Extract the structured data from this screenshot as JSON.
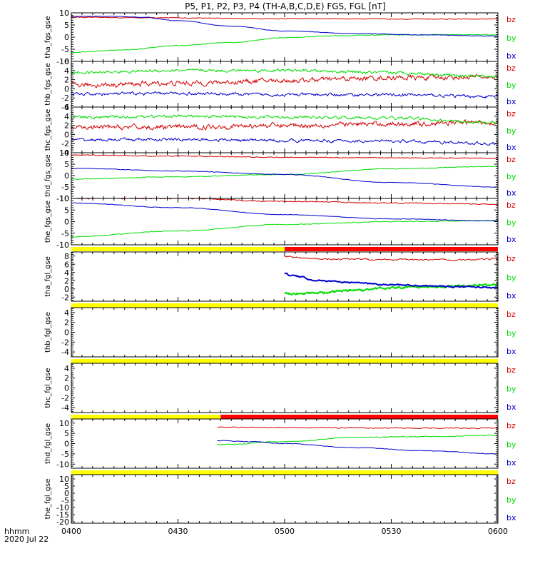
{
  "title": "P5, P1, P2, P3, P4 (TH-A,B,C,D,E) FGS, FGL [nT]",
  "footer": {
    "hhmm": "hhmm",
    "date": "2020 Jul 22"
  },
  "colors": {
    "bz": "#d40000",
    "by": "#00dd00",
    "bx": "#0000cc",
    "bar_yellow": "#ffff00",
    "bar_red": "#ff0000"
  },
  "chart_data": [
    {
      "type": "line",
      "ylabel": "tha_fgs_gse",
      "ylim": [
        -10,
        10
      ],
      "ticks": [
        -10,
        -5,
        0,
        5,
        10
      ],
      "tick_labels": [
        "-10",
        "-5",
        "0",
        "5",
        "10"
      ],
      "series": [
        {
          "name": "bz",
          "x": [
            0,
            20,
            60,
            120
          ],
          "y": [
            8.2,
            8.0,
            7.6,
            7.4
          ],
          "noise": 0.15
        },
        {
          "name": "by",
          "x": [
            0,
            15,
            30,
            45,
            60,
            75,
            90,
            105,
            120
          ],
          "y": [
            -6.3,
            -5.2,
            -3.5,
            -2.2,
            -0.2,
            0.6,
            0.9,
            1.0,
            0.9
          ],
          "noise": 0.15
        },
        {
          "name": "bx",
          "x": [
            0,
            10,
            20,
            30,
            45,
            60,
            80,
            100,
            120
          ],
          "y": [
            8.5,
            8.6,
            8.2,
            6.8,
            4.5,
            2.5,
            1.5,
            0.9,
            0.4
          ],
          "noise": 0.1
        }
      ]
    },
    {
      "type": "line",
      "ylabel": "thb_fgs_gse",
      "ylim": [
        -4,
        6
      ],
      "ticks": [
        -4,
        -2,
        0,
        2,
        4,
        6
      ],
      "tick_labels": [
        "-4",
        "-2",
        "0",
        "2",
        "4",
        "6"
      ],
      "series": [
        {
          "name": "bz",
          "x": [
            0,
            30,
            60,
            90,
            120
          ],
          "y": [
            0.8,
            1.2,
            1.8,
            2.4,
            2.6
          ],
          "noise": 0.5
        },
        {
          "name": "by",
          "x": [
            0,
            30,
            60,
            90,
            120
          ],
          "y": [
            3.5,
            4.0,
            4.0,
            3.5,
            2.7
          ],
          "noise": 0.3
        },
        {
          "name": "bx",
          "x": [
            0,
            30,
            60,
            90,
            120
          ],
          "y": [
            -1.2,
            -1.0,
            -1.3,
            -1.3,
            -1.7
          ],
          "noise": 0.3
        }
      ]
    },
    {
      "type": "line",
      "ylabel": "thc_fgs_gse",
      "ylim": [
        -4,
        6
      ],
      "ticks": [
        -4,
        -2,
        0,
        2,
        4,
        6
      ],
      "tick_labels": [
        "-4",
        "-2",
        "0",
        "2",
        "4",
        "6"
      ],
      "series": [
        {
          "name": "bz",
          "x": [
            0,
            30,
            60,
            90,
            120
          ],
          "y": [
            1.5,
            1.6,
            2.0,
            2.3,
            2.7
          ],
          "noise": 0.5
        },
        {
          "name": "by",
          "x": [
            0,
            30,
            60,
            90,
            120
          ],
          "y": [
            3.7,
            4.0,
            3.8,
            3.6,
            2.6
          ],
          "noise": 0.3
        },
        {
          "name": "bx",
          "x": [
            0,
            30,
            60,
            90,
            120
          ],
          "y": [
            -1.2,
            -1.1,
            -1.3,
            -1.5,
            -2.0
          ],
          "noise": 0.3
        }
      ]
    },
    {
      "type": "line",
      "ylabel": "thd_fgs_gse",
      "ylim": [
        -10,
        10
      ],
      "ticks": [
        -10,
        -5,
        0,
        5,
        10
      ],
      "tick_labels": [
        "-10",
        "-5",
        "0",
        "5",
        "10"
      ],
      "series": [
        {
          "name": "bz",
          "x": [
            0,
            30,
            60,
            90,
            120
          ],
          "y": [
            9.0,
            8.5,
            8.0,
            7.8,
            7.6
          ],
          "noise": 0.15
        },
        {
          "name": "by",
          "x": [
            0,
            30,
            60,
            90,
            120
          ],
          "y": [
            -1.5,
            -0.5,
            0.5,
            3.0,
            4.0
          ],
          "noise": 0.15
        },
        {
          "name": "bx",
          "x": [
            0,
            30,
            60,
            90,
            120
          ],
          "y": [
            3.2,
            2.0,
            0.5,
            -3.0,
            -5.0
          ],
          "noise": 0.1
        }
      ]
    },
    {
      "type": "line",
      "ylabel": "the_fgs_gse",
      "ylim": [
        -10,
        10
      ],
      "ticks": [
        -10,
        -5,
        0,
        5,
        10
      ],
      "tick_labels": [
        "-10",
        "-5",
        "0",
        "5",
        "10"
      ],
      "series": [
        {
          "name": "bz",
          "x": [
            0,
            30,
            60,
            90,
            120
          ],
          "y": [
            10.0,
            10.0,
            8.7,
            8.0,
            7.5
          ],
          "noise": 0.2
        },
        {
          "name": "by",
          "x": [
            0,
            30,
            60,
            90,
            120
          ],
          "y": [
            -6.5,
            -4.0,
            -1.2,
            0.0,
            0.5
          ],
          "noise": 0.15
        },
        {
          "name": "bx",
          "x": [
            0,
            30,
            60,
            90,
            120
          ],
          "y": [
            8.0,
            6.0,
            3.0,
            1.2,
            0.3
          ],
          "noise": 0.1
        }
      ]
    },
    {
      "type": "line",
      "ylabel": "tha_fgl_gse",
      "ylim": [
        -3,
        9
      ],
      "ticks": [
        -2,
        0,
        2,
        4,
        6,
        8
      ],
      "tick_labels": [
        "-2",
        "0",
        "2",
        "4",
        "6",
        "8"
      ],
      "bar": [
        {
          "from": 0,
          "to": 60,
          "color": "yellow"
        },
        {
          "from": 60,
          "to": 120,
          "color": "red"
        }
      ],
      "series": [
        {
          "name": "bz",
          "x": [
            60,
            70,
            80,
            90,
            100,
            110,
            120
          ],
          "y": [
            7.8,
            7.3,
            7.2,
            7.2,
            7.0,
            7.1,
            7.2
          ],
          "noise": 0.2
        },
        {
          "name": "by",
          "x": [
            60,
            70,
            80,
            90,
            100,
            110,
            120
          ],
          "y": [
            -1.2,
            -0.9,
            -0.3,
            0.3,
            0.5,
            0.7,
            1.0
          ],
          "noise": 0.25,
          "thick": true
        },
        {
          "name": "bx",
          "x": [
            60,
            62,
            70,
            80,
            90,
            100,
            110,
            120
          ],
          "y": [
            3.8,
            3.2,
            2.0,
            1.5,
            1.0,
            0.8,
            0.5,
            0.3
          ],
          "noise": 0.15,
          "thick": true
        }
      ]
    },
    {
      "type": "line",
      "ylabel": "thb_fgl_gse",
      "ylim": [
        -5,
        5
      ],
      "ticks": [
        -4,
        -2,
        0,
        2,
        4
      ],
      "tick_labels": [
        "-4",
        "-2",
        "0",
        "2",
        "4"
      ],
      "bar": [
        {
          "from": 0,
          "to": 120,
          "color": "yellow"
        }
      ],
      "series": []
    },
    {
      "type": "line",
      "ylabel": "thc_fgl_gse",
      "ylim": [
        -5,
        5
      ],
      "ticks": [
        -4,
        -2,
        0,
        2,
        4
      ],
      "tick_labels": [
        "-4",
        "-2",
        "0",
        "2",
        "4"
      ],
      "bar": [
        {
          "from": 0,
          "to": 120,
          "color": "yellow"
        }
      ],
      "series": []
    },
    {
      "type": "line",
      "ylabel": "thd_fgl_gse",
      "ylim": [
        -12,
        12
      ],
      "ticks": [
        -10,
        -5,
        0,
        5,
        10
      ],
      "tick_labels": [
        "-10",
        "-5",
        "0",
        "5",
        "10"
      ],
      "bar": [
        {
          "from": 0,
          "to": 42,
          "color": "yellow"
        },
        {
          "from": 42,
          "to": 120,
          "color": "red"
        }
      ],
      "series": [
        {
          "name": "bz",
          "x": [
            41,
            60,
            90,
            120
          ],
          "y": [
            8.0,
            7.8,
            7.6,
            7.5
          ],
          "noise": 0.2
        },
        {
          "name": "by",
          "x": [
            41,
            60,
            80,
            100,
            120
          ],
          "y": [
            -0.5,
            1.0,
            3.0,
            3.5,
            4.0
          ],
          "noise": 0.2
        },
        {
          "name": "bx",
          "x": [
            41,
            50,
            60,
            80,
            100,
            120
          ],
          "y": [
            1.5,
            1.0,
            0.0,
            -2.0,
            -3.5,
            -5.0
          ],
          "noise": 0.15
        }
      ]
    },
    {
      "type": "line",
      "ylabel": "the_fgl_gse",
      "ylim": [
        -21,
        13
      ],
      "ticks": [
        -20,
        -15,
        -10,
        -5,
        0,
        5,
        10
      ],
      "tick_labels": [
        "-20",
        "-15",
        "-10",
        "-5",
        "0",
        "5",
        "10"
      ],
      "bar": [
        {
          "from": 0,
          "to": 120,
          "color": "yellow"
        }
      ],
      "series": []
    }
  ],
  "xaxis": {
    "min": 0,
    "max": 120,
    "ticks": [
      0,
      30,
      60,
      90,
      120
    ],
    "tick_labels": [
      "0400",
      "0430",
      "0500",
      "0530",
      "0600"
    ]
  },
  "legend": [
    "bz",
    "by",
    "bx"
  ]
}
